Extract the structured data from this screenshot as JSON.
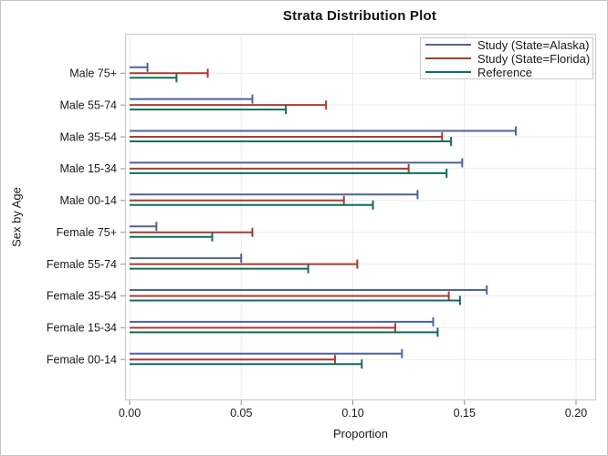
{
  "colors": {
    "background": "#ffffff",
    "outer_border": "#c4c4c4",
    "frame": "#c8c8c8",
    "grid": "#ebebeb",
    "tick": "#8f8f8f",
    "text": "#1a1a1a",
    "series_blue": "#4f629e",
    "series_red": "#a43d30",
    "series_green": "#0f6e5d"
  },
  "chart_data": {
    "type": "bar",
    "subtype": "horizontal-needle-hline",
    "title": "Strata Distribution Plot",
    "xlabel": "Proportion",
    "ylabel": "Sex by Age",
    "grid": true,
    "legend_position": "top-right",
    "xlim": [
      0,
      0.21
    ],
    "x_ticks": [
      0,
      0.05,
      0.1,
      0.15,
      0.2
    ],
    "x_tick_labels": [
      "0.00",
      "0.05",
      "0.10",
      "0.15",
      "0.20"
    ],
    "categories": [
      "Male 75+",
      "Male 55-74",
      "Male 35-54",
      "Male 15-34",
      "Male 00-14",
      "Female 75+",
      "Female 55-74",
      "Female 35-54",
      "Female 15-34",
      "Female 00-14"
    ],
    "series": [
      {
        "name": "Study (State=Alaska)",
        "color": "#4f629e",
        "values": [
          0.008,
          0.055,
          0.173,
          0.149,
          0.129,
          0.012,
          0.05,
          0.16,
          0.136,
          0.122
        ]
      },
      {
        "name": "Study (State=Florida)",
        "color": "#a43d30",
        "values": [
          0.035,
          0.088,
          0.14,
          0.125,
          0.096,
          0.055,
          0.102,
          0.143,
          0.119,
          0.092
        ]
      },
      {
        "name": "Reference",
        "color": "#0f6e5d",
        "values": [
          0.021,
          0.07,
          0.144,
          0.142,
          0.109,
          0.037,
          0.08,
          0.148,
          0.138,
          0.104
        ]
      }
    ]
  }
}
